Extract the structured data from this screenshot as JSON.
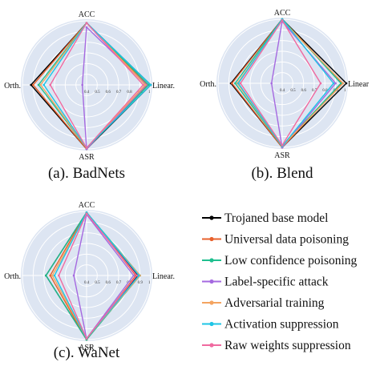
{
  "chart_data": [
    {
      "type": "radar",
      "caption": "(a). BadNets",
      "axes": [
        "ACC",
        "Linear.",
        "ASR",
        "Orth."
      ],
      "ticks": [
        0.4,
        0.5,
        0.6,
        0.7,
        0.8,
        0.9,
        1
      ],
      "rlim": [
        0.4,
        1.0
      ],
      "series": [
        {
          "name": "Trojaned base model",
          "values": [
            0.98,
            1.0,
            1.0,
            0.92
          ]
        },
        {
          "name": "Universal data poisoning",
          "values": [
            0.98,
            0.97,
            1.0,
            0.9
          ]
        },
        {
          "name": "Low confidence poisoning",
          "values": [
            0.98,
            0.98,
            0.99,
            0.85
          ]
        },
        {
          "name": "Label-specific attack",
          "values": [
            0.94,
            0.96,
            1.0,
            0.44
          ]
        },
        {
          "name": "Adversarial training",
          "values": [
            0.98,
            0.95,
            0.99,
            0.83
          ]
        },
        {
          "name": "Activation suppression",
          "values": [
            0.98,
            1.0,
            0.99,
            0.8
          ]
        },
        {
          "name": "Raw weights suppression",
          "values": [
            0.98,
            0.93,
            0.99,
            0.74
          ]
        }
      ]
    },
    {
      "type": "radar",
      "caption": "(b). Blend",
      "axes": [
        "ACC",
        "Linear",
        "ASR",
        "Orth."
      ],
      "ticks": [
        0.4,
        0.5,
        0.6,
        0.7,
        0.8,
        0.9,
        1
      ],
      "rlim": [
        0.4,
        1.0
      ],
      "series": [
        {
          "name": "Trojaned base model",
          "values": [
            1.0,
            1.0,
            1.0,
            0.88
          ]
        },
        {
          "name": "Universal data poisoning",
          "values": [
            1.0,
            0.96,
            1.0,
            0.87
          ]
        },
        {
          "name": "Low confidence poisoning",
          "values": [
            1.0,
            0.95,
            0.99,
            0.84
          ]
        },
        {
          "name": "Label-specific attack",
          "values": [
            0.98,
            0.9,
            1.0,
            0.5
          ]
        },
        {
          "name": "Adversarial training",
          "values": [
            0.99,
            0.97,
            0.99,
            0.82
          ]
        },
        {
          "name": "Activation suppression",
          "values": [
            1.0,
            0.88,
            0.99,
            0.81
          ]
        },
        {
          "name": "Raw weights suppression",
          "values": [
            0.99,
            0.76,
            0.98,
            0.79
          ]
        }
      ]
    },
    {
      "type": "radar",
      "caption": "(c). WaNet",
      "axes": [
        "ACC",
        "Linear.",
        "ASR",
        "Orth."
      ],
      "ticks": [
        0.4,
        0.5,
        0.6,
        0.7,
        0.8,
        0.9,
        1
      ],
      "rlim": [
        0.4,
        1.0
      ],
      "series": [
        {
          "name": "Trojaned base model",
          "values": [
            0.99,
            0.88,
            1.0,
            0.78
          ]
        },
        {
          "name": "Universal data poisoning",
          "values": [
            0.99,
            0.86,
            1.0,
            0.74
          ]
        },
        {
          "name": "Low confidence poisoning",
          "values": [
            0.99,
            0.9,
            1.0,
            0.78
          ]
        },
        {
          "name": "Label-specific attack",
          "values": [
            0.97,
            0.84,
            0.99,
            0.52
          ]
        },
        {
          "name": "Adversarial training",
          "values": [
            0.98,
            0.9,
            0.99,
            0.72
          ]
        },
        {
          "name": "Activation suppression",
          "values": [
            0.99,
            0.89,
            0.99,
            0.7
          ]
        },
        {
          "name": "Raw weights suppression",
          "values": [
            0.98,
            0.87,
            0.99,
            0.66
          ]
        }
      ]
    }
  ],
  "legend": {
    "entries": [
      {
        "name": "Trojaned base model",
        "color": "#000000"
      },
      {
        "name": "Universal data poisoning",
        "color": "#e8612c"
      },
      {
        "name": "Low confidence poisoning",
        "color": "#1fbf8f"
      },
      {
        "name": "Label-specific attack",
        "color": "#a569e0"
      },
      {
        "name": "Adversarial training",
        "color": "#f4a460"
      },
      {
        "name": "Activation suppression",
        "color": "#1ec5e6"
      },
      {
        "name": "Raw weights suppression",
        "color": "#f06aa0"
      }
    ]
  },
  "style": {
    "background_disc": "#dde5f2",
    "grid_color": "#ffffff"
  }
}
